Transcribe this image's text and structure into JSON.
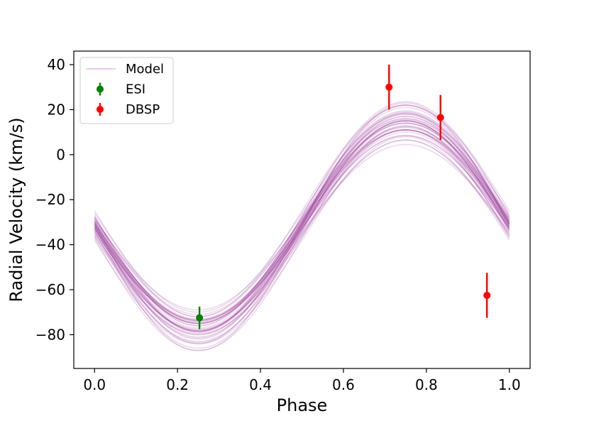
{
  "chart_data": {
    "type": "scatter",
    "title": "",
    "xlabel": "Phase",
    "ylabel": "Radial Velocity (km/s)",
    "xlim": [
      -0.05,
      1.05
    ],
    "ylim": [
      -95,
      46
    ],
    "xticks": [
      0.0,
      0.2,
      0.4,
      0.6,
      0.8,
      1.0
    ],
    "xtick_labels": [
      "0.0",
      "0.2",
      "0.4",
      "0.6",
      "0.8",
      "1.0"
    ],
    "yticks": [
      -80,
      -60,
      -40,
      -20,
      0,
      20,
      40
    ],
    "ytick_labels": [
      "−80",
      "−60",
      "−40",
      "−20",
      "0",
      "20",
      "40"
    ],
    "grid": false,
    "legend": {
      "placement": "top-left",
      "entries": [
        {
          "label": "Model",
          "kind": "line",
          "color": "#800080"
        },
        {
          "label": "ESI",
          "kind": "errorbar",
          "color": "#008000"
        },
        {
          "label": "DBSP",
          "kind": "errorbar",
          "color": "#ff0000"
        }
      ]
    },
    "model": {
      "name": "Model",
      "function": "sine",
      "color": "#800080",
      "opacity": 0.15,
      "x_range": [
        0.0,
        1.0
      ],
      "curves": [
        {
          "offset": -31.0,
          "amplitude": 42.0
        },
        {
          "offset": -32.0,
          "amplitude": 46.0
        },
        {
          "offset": -30.0,
          "amplitude": 44.0
        },
        {
          "offset": -33.0,
          "amplitude": 48.0
        },
        {
          "offset": -29.0,
          "amplitude": 40.0
        },
        {
          "offset": -34.0,
          "amplitude": 52.0
        },
        {
          "offset": -28.0,
          "amplitude": 47.0
        },
        {
          "offset": -35.0,
          "amplitude": 45.0
        },
        {
          "offset": -31.5,
          "amplitude": 50.0
        },
        {
          "offset": -30.5,
          "amplitude": 43.0
        },
        {
          "offset": -32.5,
          "amplitude": 41.0
        },
        {
          "offset": -27.0,
          "amplitude": 49.0
        },
        {
          "offset": -36.0,
          "amplitude": 47.0
        },
        {
          "offset": -33.5,
          "amplitude": 44.5
        },
        {
          "offset": -29.5,
          "amplitude": 46.5
        },
        {
          "offset": -31.0,
          "amplitude": 53.0
        },
        {
          "offset": -26.0,
          "amplitude": 44.0
        },
        {
          "offset": -37.0,
          "amplitude": 50.0
        },
        {
          "offset": -34.5,
          "amplitude": 39.0
        },
        {
          "offset": -28.5,
          "amplitude": 42.5
        },
        {
          "offset": -32.0,
          "amplitude": 55.0
        },
        {
          "offset": -30.0,
          "amplitude": 48.5
        },
        {
          "offset": -35.5,
          "amplitude": 42.0
        },
        {
          "offset": -27.5,
          "amplitude": 51.0
        },
        {
          "offset": -33.0,
          "amplitude": 45.5
        },
        {
          "offset": -29.0,
          "amplitude": 45.0
        },
        {
          "offset": -38.0,
          "amplitude": 46.0
        },
        {
          "offset": -25.0,
          "amplitude": 47.0
        },
        {
          "offset": -31.5,
          "amplitude": 43.5
        },
        {
          "offset": -34.0,
          "amplitude": 49.5
        },
        {
          "offset": -30.5,
          "amplitude": 51.5
        },
        {
          "offset": -32.5,
          "amplitude": 47.5
        },
        {
          "offset": -28.0,
          "amplitude": 44.0
        },
        {
          "offset": -36.5,
          "amplitude": 43.0
        },
        {
          "offset": -31.0,
          "amplitude": 46.0
        },
        {
          "offset": -33.0,
          "amplitude": 41.5
        },
        {
          "offset": -29.5,
          "amplitude": 49.0
        },
        {
          "offset": -30.0,
          "amplitude": 45.0
        },
        {
          "offset": -32.0,
          "amplitude": 43.0
        },
        {
          "offset": -31.0,
          "amplitude": 48.0
        }
      ]
    },
    "series": [
      {
        "name": "ESI",
        "color": "#008000",
        "points": [
          {
            "x": 0.253,
            "y": -72.5,
            "yerr": 5.0
          }
        ]
      },
      {
        "name": "DBSP",
        "color": "#ff0000",
        "points": [
          {
            "x": 0.71,
            "y": 30.0,
            "yerr": 10.0
          },
          {
            "x": 0.834,
            "y": 16.5,
            "yerr": 10.0
          },
          {
            "x": 0.946,
            "y": -62.5,
            "yerr": 10.0
          }
        ]
      }
    ]
  }
}
